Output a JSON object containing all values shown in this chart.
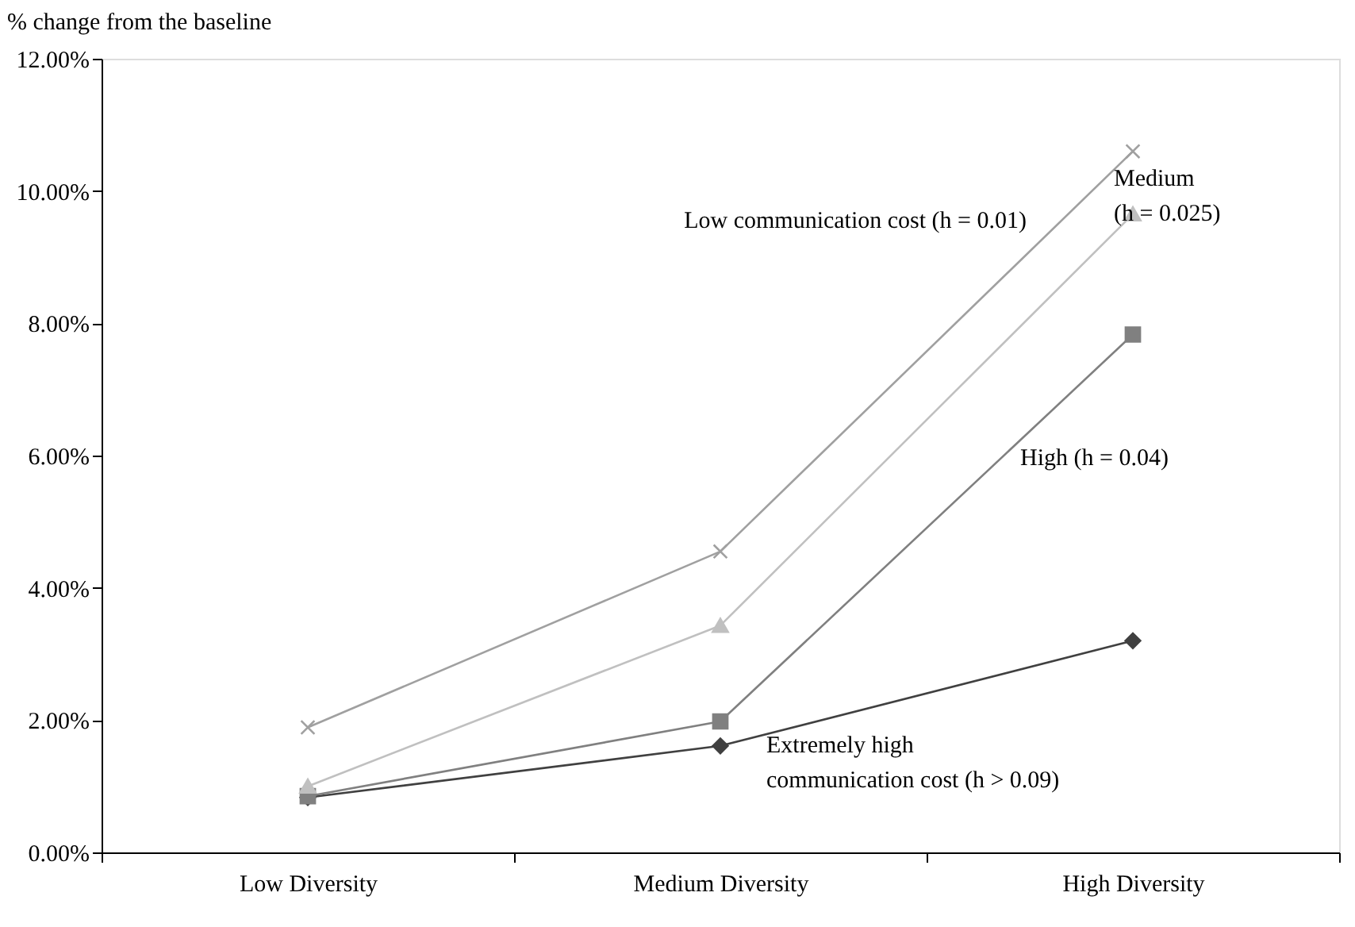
{
  "chart_data": {
    "type": "line",
    "ylabel": "% change from the baseline",
    "categories": [
      "Low Diversity",
      "Medium Diversity",
      "High Diversity"
    ],
    "series": [
      {
        "name": "Low communication cost (h = 0.01)",
        "color": "#a0a0a0",
        "marker": "cross",
        "values": [
          1.89,
          4.55,
          10.6
        ]
      },
      {
        "name": "Medium\n(h = 0.025)",
        "color": "#c0c0c0",
        "marker": "triangle",
        "values": [
          1.0,
          3.43,
          9.65
        ]
      },
      {
        "name": "High (h = 0.04)",
        "color": "#808080",
        "marker": "square",
        "values": [
          0.85,
          1.98,
          7.83
        ]
      },
      {
        "name": "Extremely high\ncommunication cost (h > 0.09)",
        "color": "#404040",
        "marker": "diamond",
        "values": [
          0.83,
          1.61,
          3.2
        ]
      }
    ],
    "ylim": [
      0,
      12
    ],
    "yticks": [
      {
        "value": 0,
        "label": "0.00%"
      },
      {
        "value": 2,
        "label": "2.00%"
      },
      {
        "value": 4,
        "label": "4.00%"
      },
      {
        "value": 6,
        "label": "6.00%"
      },
      {
        "value": 8,
        "label": "8.00%"
      },
      {
        "value": 10,
        "label": "10.00%"
      },
      {
        "value": 12,
        "label": "12.00%"
      }
    ],
    "grid": false,
    "legend": false,
    "line_style": "solid"
  }
}
